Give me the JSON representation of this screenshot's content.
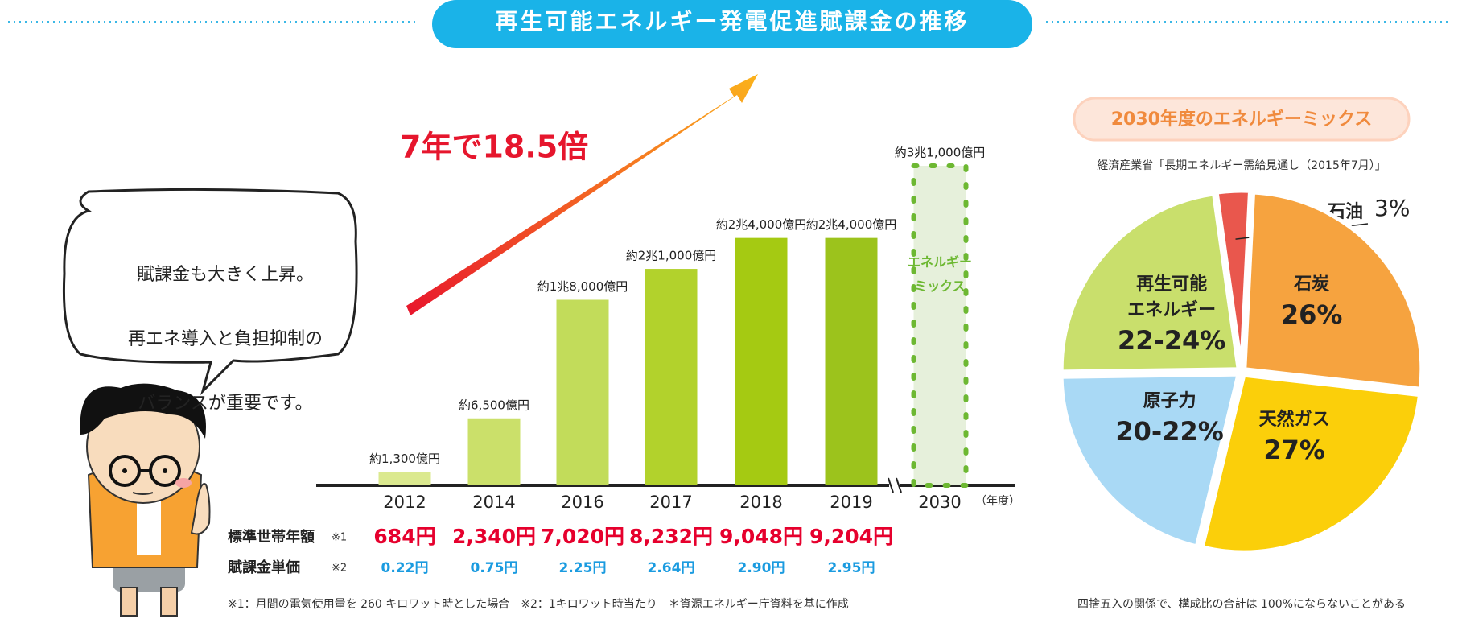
{
  "title": "再生可能エネルギー発電促進賦課金の推移",
  "speech_bubble": [
    "賦課金も大きく上昇。",
    "再エネ導入と負担抑制の",
    "バランスが重要です。"
  ],
  "chart_data": [
    {
      "type": "bar",
      "annotation": "7年で18.5倍",
      "categories": [
        "2012",
        "2014",
        "2016",
        "2017",
        "2018",
        "2019",
        "2030"
      ],
      "values": [
        1300,
        6500,
        18000,
        21000,
        24000,
        24000,
        31000
      ],
      "value_labels": [
        "約1,300億円",
        "約6,500億円",
        "約1兆8,000億円",
        "約2兆1,000億円",
        "約2兆4,000億円",
        "約2兆4,000億円",
        "約3兆1,000億円"
      ],
      "colors": [
        "#dbe98f",
        "#cbe06a",
        "#c2dc5a",
        "#b2d22c",
        "#a5ca12",
        "#9cc31c",
        "#e6f0db"
      ],
      "bar_notes": [
        null,
        null,
        null,
        null,
        null,
        null,
        "エネルギー\nミックス"
      ],
      "bar_note_color": "#6db832",
      "x_label": "（年度）"
    },
    {
      "type": "pie",
      "title": "2030年度のエネルギーミックス",
      "subtitle": "経済産業省「長期エネルギー需給見通し（2015年7月）」",
      "categories": [
        "石油",
        "石炭",
        "天然ガス",
        "原子力",
        "再生可能\nエネルギー"
      ],
      "values": [
        3,
        26,
        27,
        21,
        23
      ],
      "value_labels": [
        "3%",
        "26%",
        "27%",
        "20-22%",
        "22-24%"
      ],
      "colors": [
        "#e9574d",
        "#f6a33f",
        "#fbcf0a",
        "#a9d9f5",
        "#c9df6c"
      ],
      "note": "四捨五入の関係で、構成比の合計は 100%にならないことがある"
    }
  ],
  "table": {
    "rows": [
      {
        "label": "標準世帯年額",
        "note": "※1",
        "values": [
          "684円",
          "2,340円",
          "7,020円",
          "8,232円",
          "9,048円",
          "9,204円"
        ]
      },
      {
        "label": "賦課金単価",
        "note": "※2",
        "values": [
          "0.22円",
          "0.75円",
          "2.25円",
          "2.64円",
          "2.90円",
          "2.95円"
        ]
      }
    ]
  },
  "footnote": "※1：月間の電気使用量を 260 キロワット時とした場合　※2：1キロワット時当たり　＊資源エネルギー庁資料を基に作成"
}
